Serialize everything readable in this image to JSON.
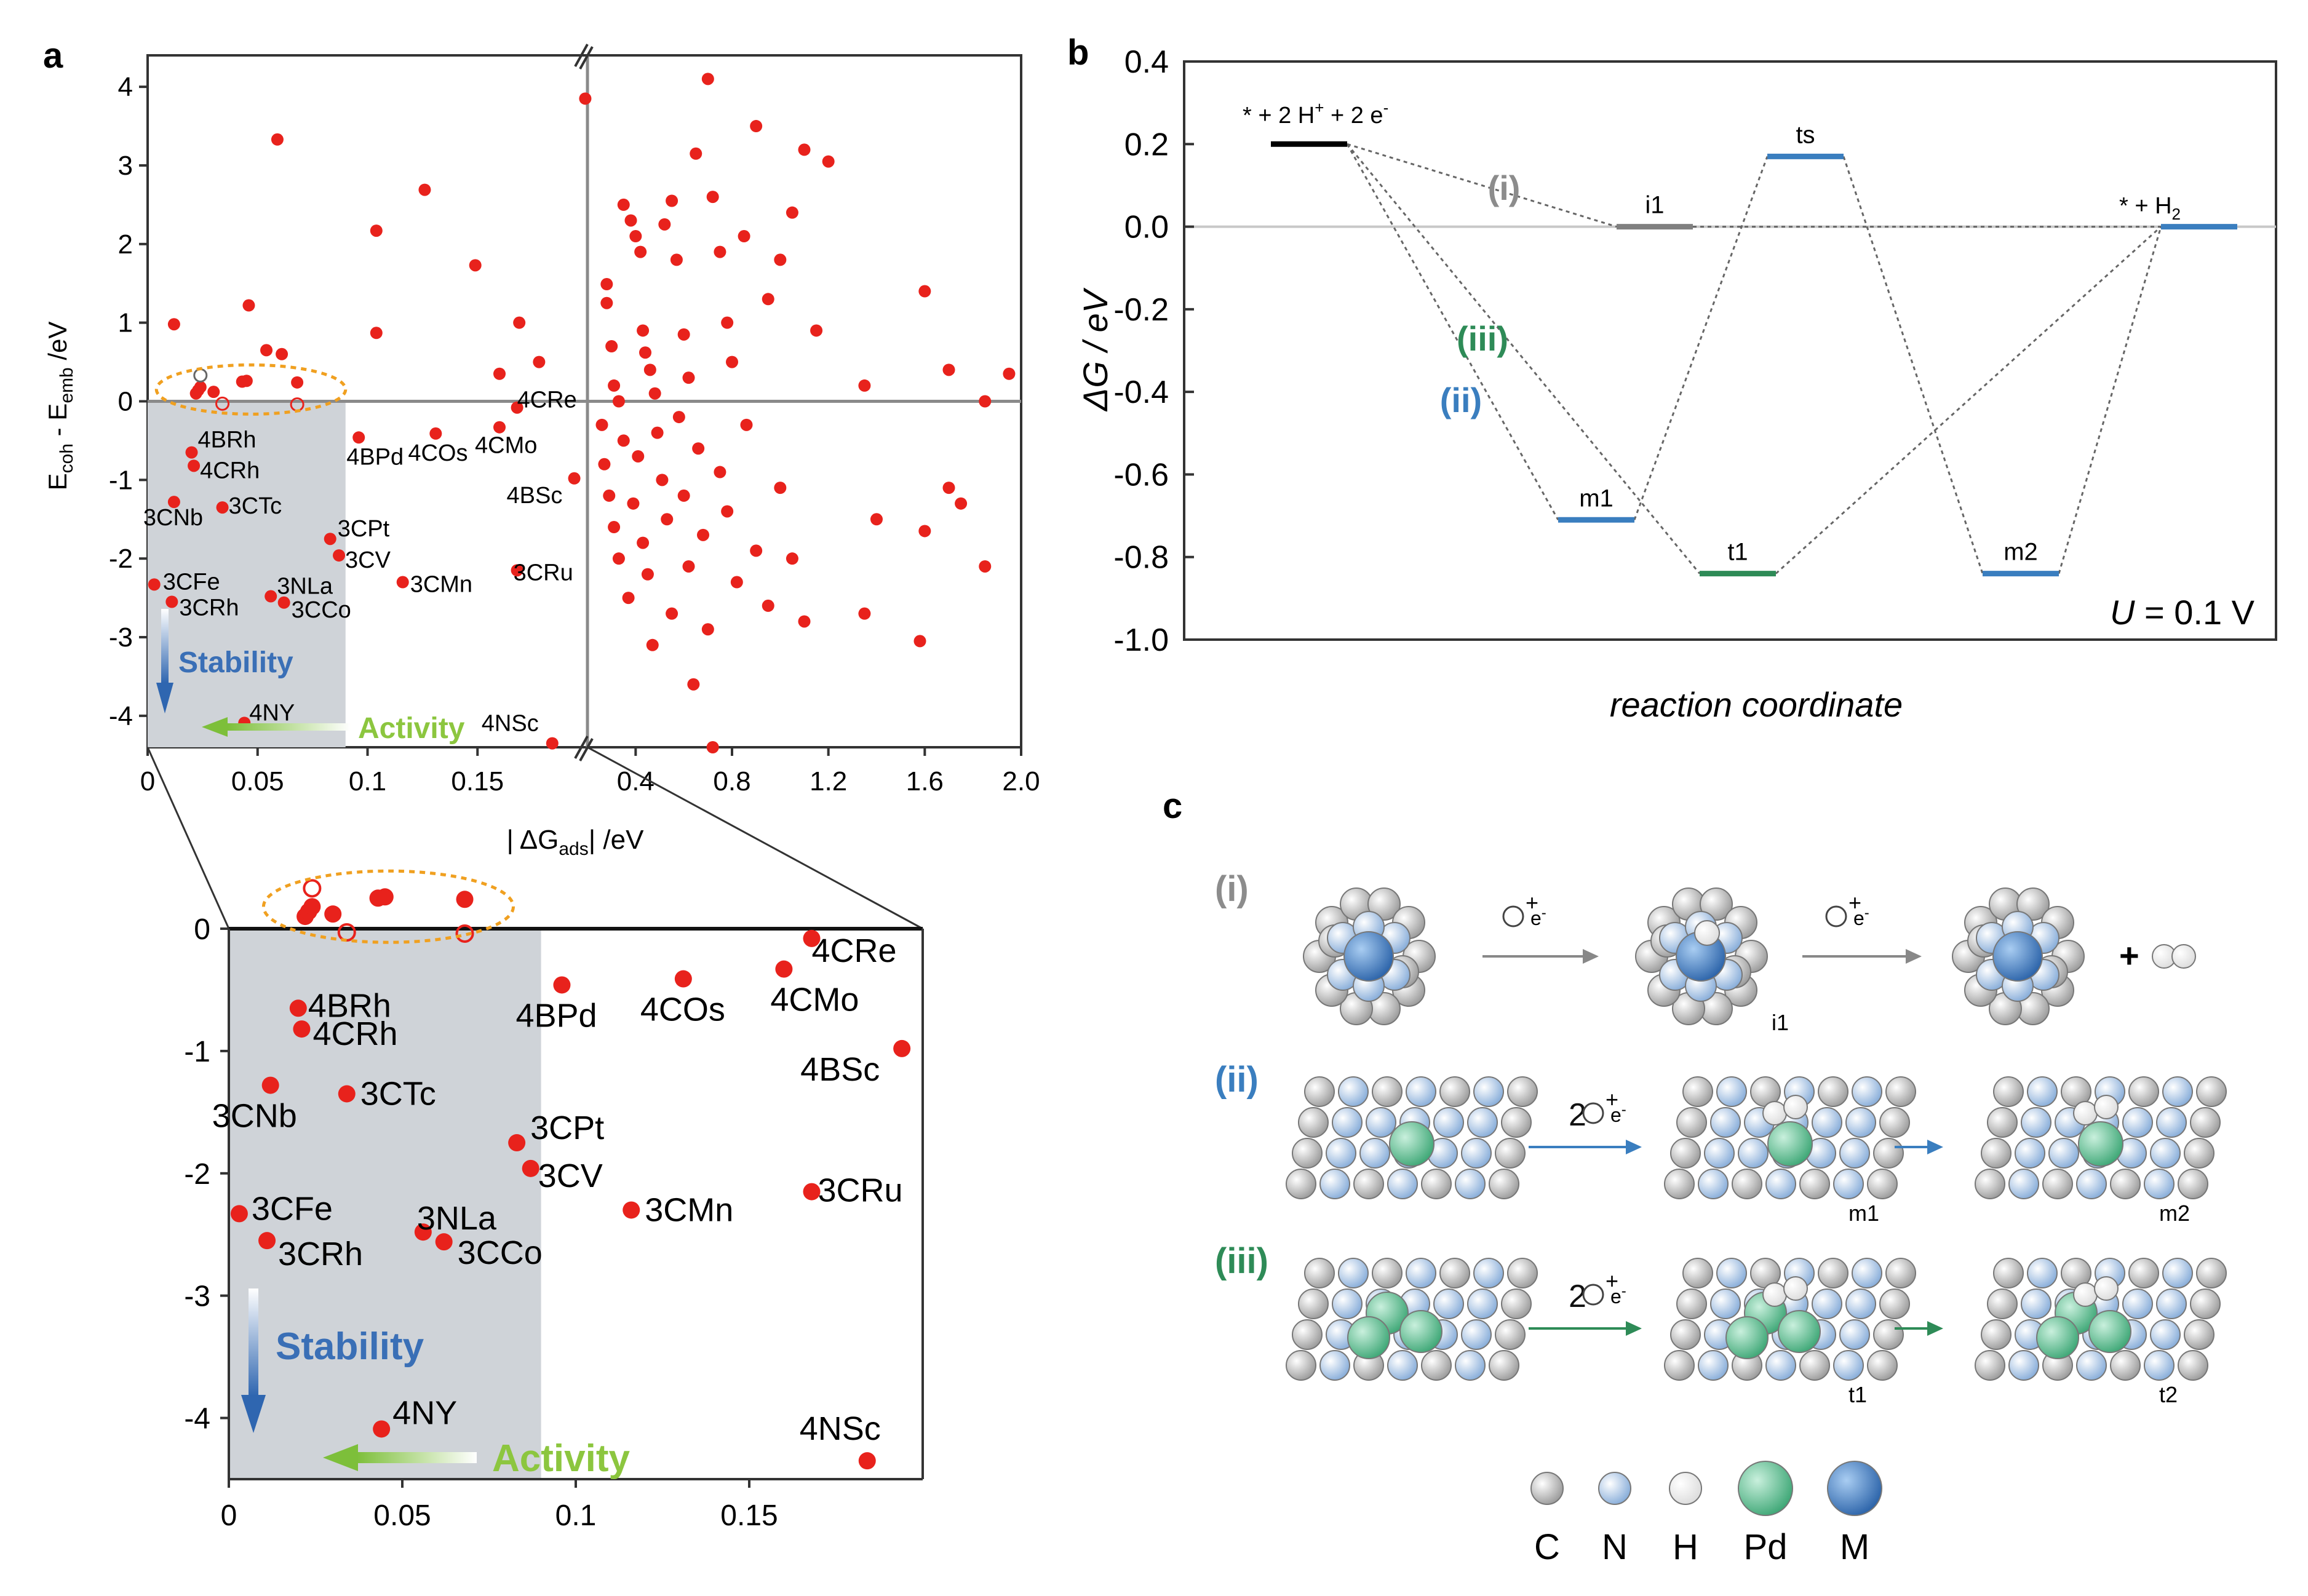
{
  "panel_labels": {
    "a": "a",
    "b": "b",
    "c": "c"
  },
  "chart_data": [
    {
      "id": "a-main",
      "type": "scatter",
      "title": "",
      "xlabel": "| ΔG",
      "xlabel_sub": "ads",
      "xlabel_tail": "| /eV",
      "ylabel": "E",
      "ylabel_sub1": "coh",
      "ylabel_mid": " - E",
      "ylabel_sub2": "emb",
      "ylabel_tail": " /eV",
      "ylim": [
        -4.4,
        4.4
      ],
      "yticks": [
        "4",
        "3",
        "2",
        "1",
        "0",
        "-1",
        "-2",
        "-3",
        "-4"
      ],
      "x_break": 0.2,
      "xlim_left": [
        0,
        0.2
      ],
      "xlim_right": [
        0.2,
        2.0
      ],
      "xticks_left": [
        "0",
        "0.05",
        "0.1",
        "0.15"
      ],
      "xticks_right": [
        "0.4",
        "0.8",
        "1.2",
        "1.6",
        "2.0"
      ],
      "labeled_points": [
        {
          "label": "4BRh",
          "x": 0.02,
          "y": -0.65
        },
        {
          "label": "4CRh",
          "x": 0.021,
          "y": -0.82
        },
        {
          "label": "3CNb",
          "x": 0.012,
          "y": -1.28
        },
        {
          "label": "3CTc",
          "x": 0.034,
          "y": -1.35
        },
        {
          "label": "3CPt",
          "x": 0.083,
          "y": -1.75
        },
        {
          "label": "3CV",
          "x": 0.087,
          "y": -1.96
        },
        {
          "label": "3CMn",
          "x": 0.116,
          "y": -2.3
        },
        {
          "label": "3CFe",
          "x": 0.003,
          "y": -2.33
        },
        {
          "label": "3NLa",
          "x": 0.056,
          "y": -2.48
        },
        {
          "label": "3CRh",
          "x": 0.011,
          "y": -2.55
        },
        {
          "label": "3CCo",
          "x": 0.062,
          "y": -2.56
        },
        {
          "label": "4BPd",
          "x": 0.096,
          "y": -0.46
        },
        {
          "label": "4COs",
          "x": 0.131,
          "y": -0.41
        },
        {
          "label": "4CRe",
          "x": 0.168,
          "y": -0.08
        },
        {
          "label": "4CMo",
          "x": 0.16,
          "y": -0.33
        },
        {
          "label": "4BSc",
          "x": 0.194,
          "y": -0.98
        },
        {
          "label": "3CRu",
          "x": 0.168,
          "y": -2.15
        },
        {
          "label": "4NY",
          "x": 0.044,
          "y": -4.09
        },
        {
          "label": "4NSc",
          "x": 0.184,
          "y": -4.35
        }
      ],
      "near_zero_points": [
        {
          "x": 0.022,
          "y": 0.1,
          "hollow": false
        },
        {
          "x": 0.023,
          "y": 0.14,
          "hollow": false
        },
        {
          "x": 0.024,
          "y": 0.18,
          "hollow": false
        },
        {
          "x": 0.03,
          "y": 0.12,
          "hollow": false
        },
        {
          "x": 0.043,
          "y": 0.25,
          "hollow": false
        },
        {
          "x": 0.045,
          "y": 0.26,
          "hollow": false
        },
        {
          "x": 0.068,
          "y": 0.24,
          "hollow": false
        },
        {
          "x": 0.024,
          "y": 0.33,
          "hollow": true
        },
        {
          "x": 0.034,
          "y": -0.03,
          "hollow": true
        },
        {
          "x": 0.068,
          "y": -0.04,
          "hollow": true
        }
      ],
      "other_points": [
        {
          "x": 0.012,
          "y": 0.98
        },
        {
          "x": 0.046,
          "y": 1.22
        },
        {
          "x": 0.054,
          "y": 0.65
        },
        {
          "x": 0.061,
          "y": 0.6
        },
        {
          "x": 0.059,
          "y": 3.33
        },
        {
          "x": 0.104,
          "y": 2.17
        },
        {
          "x": 0.104,
          "y": 0.87
        },
        {
          "x": 0.126,
          "y": 2.69
        },
        {
          "x": 0.149,
          "y": 1.73
        },
        {
          "x": 0.16,
          "y": 0.35
        },
        {
          "x": 0.169,
          "y": 1.0
        },
        {
          "x": 0.178,
          "y": 0.5
        },
        {
          "x": 0.199,
          "y": 3.85
        },
        {
          "x": 0.28,
          "y": 1.49
        },
        {
          "x": 0.28,
          "y": 1.25
        },
        {
          "x": 0.3,
          "y": 0.7
        },
        {
          "x": 0.31,
          "y": 0.2
        },
        {
          "x": 0.33,
          "y": 0.0
        },
        {
          "x": 0.35,
          "y": 2.5
        },
        {
          "x": 0.38,
          "y": 2.3
        },
        {
          "x": 0.4,
          "y": 2.1
        },
        {
          "x": 0.42,
          "y": 1.9
        },
        {
          "x": 0.43,
          "y": 0.9
        },
        {
          "x": 0.44,
          "y": 0.62
        },
        {
          "x": 0.46,
          "y": 0.4
        },
        {
          "x": 0.48,
          "y": 0.1
        },
        {
          "x": 0.52,
          "y": 2.25
        },
        {
          "x": 0.55,
          "y": 2.55
        },
        {
          "x": 0.57,
          "y": 1.8
        },
        {
          "x": 0.6,
          "y": 0.85
        },
        {
          "x": 0.62,
          "y": 0.3
        },
        {
          "x": 0.65,
          "y": 3.15
        },
        {
          "x": 0.7,
          "y": 4.1
        },
        {
          "x": 0.72,
          "y": 2.6
        },
        {
          "x": 0.75,
          "y": 1.9
        },
        {
          "x": 0.78,
          "y": 1.0
        },
        {
          "x": 0.8,
          "y": 0.5
        },
        {
          "x": 0.85,
          "y": 2.1
        },
        {
          "x": 0.9,
          "y": 3.5
        },
        {
          "x": 0.95,
          "y": 1.3
        },
        {
          "x": 1.0,
          "y": 1.8
        },
        {
          "x": 1.05,
          "y": 2.4
        },
        {
          "x": 1.1,
          "y": 3.2
        },
        {
          "x": 1.15,
          "y": 0.9
        },
        {
          "x": 1.2,
          "y": 3.05
        },
        {
          "x": 1.35,
          "y": 0.2
        },
        {
          "x": 1.6,
          "y": 1.4
        },
        {
          "x": 1.7,
          "y": 0.4
        },
        {
          "x": 1.85,
          "y": 0.0
        },
        {
          "x": 1.95,
          "y": 0.35
        },
        {
          "x": 0.26,
          "y": -0.3
        },
        {
          "x": 0.27,
          "y": -0.8
        },
        {
          "x": 0.29,
          "y": -1.2
        },
        {
          "x": 0.31,
          "y": -1.6
        },
        {
          "x": 0.33,
          "y": -2.0
        },
        {
          "x": 0.35,
          "y": -0.5
        },
        {
          "x": 0.37,
          "y": -2.5
        },
        {
          "x": 0.39,
          "y": -1.3
        },
        {
          "x": 0.41,
          "y": -0.7
        },
        {
          "x": 0.43,
          "y": -1.8
        },
        {
          "x": 0.45,
          "y": -2.2
        },
        {
          "x": 0.47,
          "y": -3.1
        },
        {
          "x": 0.49,
          "y": -0.4
        },
        {
          "x": 0.51,
          "y": -1.0
        },
        {
          "x": 0.53,
          "y": -1.5
        },
        {
          "x": 0.55,
          "y": -2.7
        },
        {
          "x": 0.58,
          "y": -0.2
        },
        {
          "x": 0.6,
          "y": -1.2
        },
        {
          "x": 0.62,
          "y": -2.1
        },
        {
          "x": 0.64,
          "y": -3.6
        },
        {
          "x": 0.66,
          "y": -0.6
        },
        {
          "x": 0.68,
          "y": -1.7
        },
        {
          "x": 0.7,
          "y": -2.9
        },
        {
          "x": 0.72,
          "y": -4.4
        },
        {
          "x": 0.75,
          "y": -0.9
        },
        {
          "x": 0.78,
          "y": -1.4
        },
        {
          "x": 0.82,
          "y": -2.3
        },
        {
          "x": 0.86,
          "y": -0.3
        },
        {
          "x": 0.9,
          "y": -1.9
        },
        {
          "x": 0.95,
          "y": -2.6
        },
        {
          "x": 1.0,
          "y": -1.1
        },
        {
          "x": 1.05,
          "y": -2.0
        },
        {
          "x": 1.1,
          "y": -2.8
        },
        {
          "x": 1.35,
          "y": -2.7
        },
        {
          "x": 1.4,
          "y": -1.5
        },
        {
          "x": 1.58,
          "y": -3.05
        },
        {
          "x": 1.6,
          "y": -1.65
        },
        {
          "x": 1.7,
          "y": -1.1
        },
        {
          "x": 1.75,
          "y": -1.3
        },
        {
          "x": 1.85,
          "y": -2.1
        }
      ],
      "shaded_region": {
        "x": [
          0,
          0.09
        ],
        "y": [
          -4.4,
          0
        ]
      },
      "stability_label": "Stability",
      "activity_label": "Activity"
    },
    {
      "id": "a-inset",
      "type": "scatter",
      "xlim": [
        0,
        0.2
      ],
      "ylim": [
        -4.5,
        0.4
      ],
      "xticks": [
        "0",
        "0.05",
        "0.1",
        "0.15"
      ],
      "yticks": [
        "0",
        "-1",
        "-2",
        "-3",
        "-4"
      ],
      "stability_label": "Stability",
      "activity_label": "Activity"
    },
    {
      "id": "b",
      "type": "line",
      "ylabel": "ΔG / eV",
      "xlabel": "reaction coordinate",
      "ylim": [
        -1.0,
        0.4
      ],
      "yticks": [
        "0.4",
        "0.2",
        "0.0",
        "-0.2",
        "-0.4",
        "-0.6",
        "-0.8",
        "-1.0"
      ],
      "annotation": "U = 0.1 V",
      "annotation_var": "U",
      "annotation_rest": " = 0.1 V",
      "levels": [
        {
          "id": "start",
          "pos": 0,
          "G": 0.2,
          "color": "#000000",
          "label": ""
        },
        {
          "id": "i1",
          "pos": 1.5,
          "G": 0.0,
          "color": "#808080",
          "label": "i1"
        },
        {
          "id": "m1",
          "pos": 1,
          "G": -0.71,
          "color": "#3a7ebf",
          "label": "m1"
        },
        {
          "id": "t1",
          "pos": 2,
          "G": -0.84,
          "color": "#2e8b57",
          "label": "t1"
        },
        {
          "id": "ts",
          "pos": 2.5,
          "G": 0.17,
          "color": "#3a7ebf",
          "label": "ts"
        },
        {
          "id": "m2",
          "pos": 3.5,
          "G": -0.84,
          "color": "#3a7ebf",
          "label": "m2"
        },
        {
          "id": "end",
          "pos": 4.5,
          "G": 0.0,
          "color": "#3a7ebf",
          "label": ""
        }
      ],
      "start_label_prefix": "* + 2 H",
      "start_label_mid": " + 2 e",
      "end_label": "* + H",
      "end_label_sub": "2",
      "paths": [
        {
          "name": "(i)",
          "color": "#8c8c8c",
          "sequence": [
            "start",
            "i1",
            "end"
          ]
        },
        {
          "name": "(ii)",
          "color": "#3a7ebf",
          "sequence": [
            "start",
            "m1",
            "ts",
            "m2",
            "end"
          ]
        },
        {
          "name": "(iii)",
          "color": "#2e8b57",
          "sequence": [
            "start",
            "t1",
            "end"
          ]
        }
      ]
    }
  ],
  "panel_c": {
    "rows": [
      {
        "label": "(i)",
        "color": "#8c8c8c",
        "coef": "",
        "states": [
          "",
          "i1",
          ""
        ],
        "plus": "+"
      },
      {
        "label": "(ii)",
        "color": "#3a7ebf",
        "coef": "2",
        "states": [
          "",
          "m1",
          "m2"
        ]
      },
      {
        "label": "(iii)",
        "color": "#2e8b57",
        "coef": "2",
        "states": [
          "",
          "t1",
          "t2"
        ]
      }
    ],
    "reagent_sup": "+",
    "reagent_electron": "e",
    "reagent_minus": "-",
    "legend": [
      {
        "label": "C",
        "color": "#c8c8c8"
      },
      {
        "label": "N",
        "color": "#b3cdee"
      },
      {
        "label": "H",
        "color": "#ffffff"
      },
      {
        "label": "Pd",
        "color": "#6cc39a"
      },
      {
        "label": "M",
        "color": "#3f7cc4"
      }
    ]
  },
  "colors": {
    "point": "#e8221c",
    "ellipse": "#f0a020",
    "shade": "#cfd3d8",
    "axis_gray": "#9a9a9a",
    "stability": "#3a6fb6",
    "activity": "#8cc63f"
  }
}
